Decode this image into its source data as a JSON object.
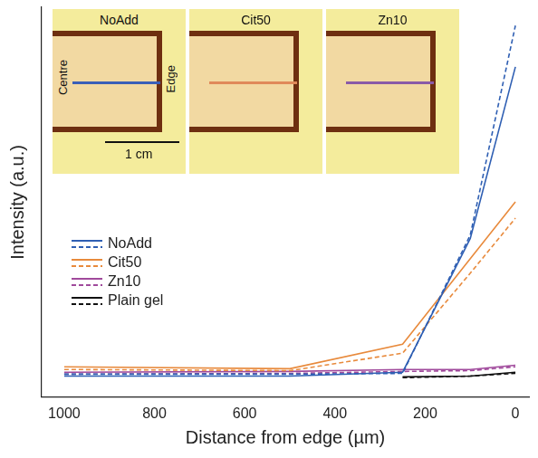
{
  "chart_data": {
    "type": "line",
    "x_label": "Distance from edge (µm)",
    "y_label": "Intensity (a.u.)",
    "x": [
      1000,
      500,
      250,
      100,
      0
    ],
    "series": [
      {
        "name": "NoAdd",
        "color": "#2f5fb3",
        "line_style": "solid",
        "values": [
          5.4,
          5.4,
          6.4,
          40.7,
          84.7
        ]
      },
      {
        "name": "NoAdd",
        "color": "#2f5fb3",
        "line_style": "dashed",
        "values": [
          5.9,
          5.9,
          6.1,
          41.6,
          95.3
        ]
      },
      {
        "name": "Cit50",
        "color": "#e88a3c",
        "line_style": "solid",
        "values": [
          7.8,
          7.3,
          13.6,
          35.5,
          50.1
        ]
      },
      {
        "name": "Cit50",
        "color": "#e88a3c",
        "line_style": "dashed",
        "values": [
          7.1,
          6.8,
          11.3,
          31.8,
          45.9
        ]
      },
      {
        "name": "Zn10",
        "color": "#a04a9c",
        "line_style": "solid",
        "values": [
          6.4,
          6.6,
          7.1,
          7.1,
          8.2
        ]
      },
      {
        "name": "Zn10",
        "color": "#a04a9c",
        "line_style": "dashed",
        "values": [
          5.9,
          6.1,
          6.6,
          6.8,
          7.8
        ]
      },
      {
        "name": "Plain gel",
        "color": "#111111",
        "line_style": "solid",
        "values": [
          null,
          null,
          5.2,
          5.4,
          6.4
        ]
      },
      {
        "name": "Plain gel",
        "color": "#111111",
        "line_style": "dashed",
        "values": [
          null,
          null,
          5.0,
          5.4,
          6.1
        ]
      }
    ],
    "xlim": [
      1050,
      -30
    ],
    "xticks": [
      1000,
      800,
      600,
      400,
      200,
      0
    ],
    "ylim": [
      0,
      100
    ],
    "grid": false,
    "legend": "left",
    "tick_labels": "x"
  },
  "insets": [
    {
      "title": "NoAdd",
      "color": "#3a5fb8",
      "labels": [
        "Centre",
        "Edge"
      ],
      "scale_bar": "1 cm"
    },
    {
      "title": "Cit50",
      "color": "#e08a5a"
    },
    {
      "title": "Zn10",
      "color": "#8a5aa8"
    }
  ]
}
